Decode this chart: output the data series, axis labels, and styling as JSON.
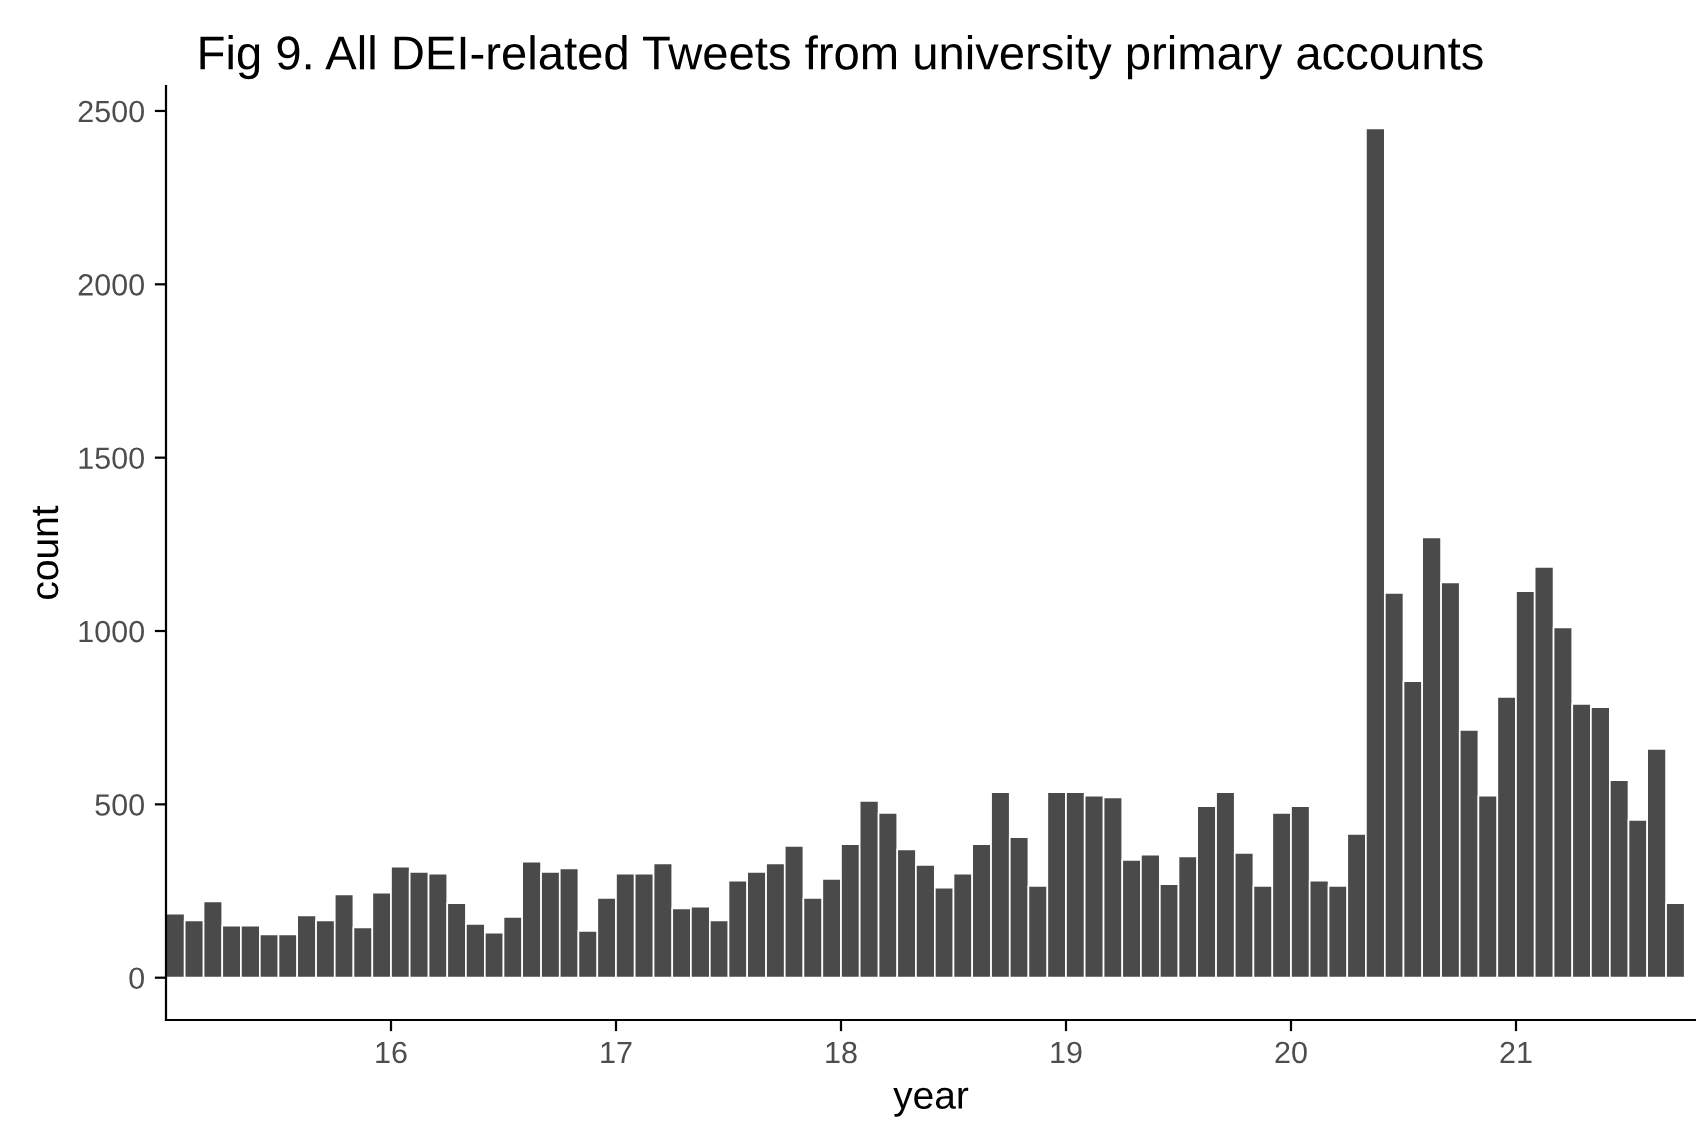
{
  "chart_data": {
    "type": "histogram",
    "title": "Fig 9. All DEI-related Tweets from university primary accounts",
    "xlabel": "year",
    "ylabel": "count",
    "bins": [
      15,
      15.083,
      15.167,
      15.25,
      15.333,
      15.417,
      15.5,
      15.583,
      15.667,
      15.75,
      15.833,
      15.917,
      16,
      16.083,
      16.167,
      16.25,
      16.333,
      16.417,
      16.5,
      16.583,
      16.667,
      16.75,
      16.833,
      16.917,
      17,
      17.083,
      17.167,
      17.25,
      17.333,
      17.417,
      17.5,
      17.583,
      17.667,
      17.75,
      17.833,
      17.917,
      18,
      18.083,
      18.167,
      18.25,
      18.333,
      18.417,
      18.5,
      18.583,
      18.667,
      18.75,
      18.833,
      18.917,
      19,
      19.083,
      19.167,
      19.25,
      19.333,
      19.417,
      19.5,
      19.583,
      19.667,
      19.75,
      19.833,
      19.917,
      20,
      20.083,
      20.167,
      20.25,
      20.333,
      20.417,
      20.5,
      20.583,
      20.667,
      20.75,
      20.833,
      20.917,
      21,
      21.083,
      21.167,
      21.25,
      21.333,
      21.417,
      21.5,
      21.583,
      21.667,
      21.75
    ],
    "values": [
      185,
      165,
      220,
      150,
      150,
      125,
      125,
      180,
      165,
      240,
      145,
      245,
      320,
      305,
      300,
      215,
      155,
      130,
      175,
      335,
      305,
      315,
      135,
      230,
      300,
      300,
      330,
      200,
      205,
      165,
      280,
      305,
      330,
      380,
      230,
      285,
      385,
      510,
      475,
      370,
      325,
      260,
      300,
      385,
      535,
      405,
      265,
      535,
      535,
      525,
      520,
      340,
      355,
      270,
      350,
      495,
      535,
      360,
      265,
      475,
      495,
      280,
      265,
      415,
      2450,
      1110,
      855,
      1270,
      1140,
      715,
      525,
      810,
      1115,
      1185,
      1010,
      790,
      780,
      570,
      455,
      660,
      215
    ],
    "color": "#4a4a4a",
    "xlim": [
      15.0,
      21.8
    ],
    "xticks": [
      16,
      17,
      18,
      19,
      20,
      21
    ],
    "ylim": [
      -122,
      2572
    ],
    "yticks": [
      0,
      500,
      1000,
      1500,
      2000,
      2500
    ]
  }
}
